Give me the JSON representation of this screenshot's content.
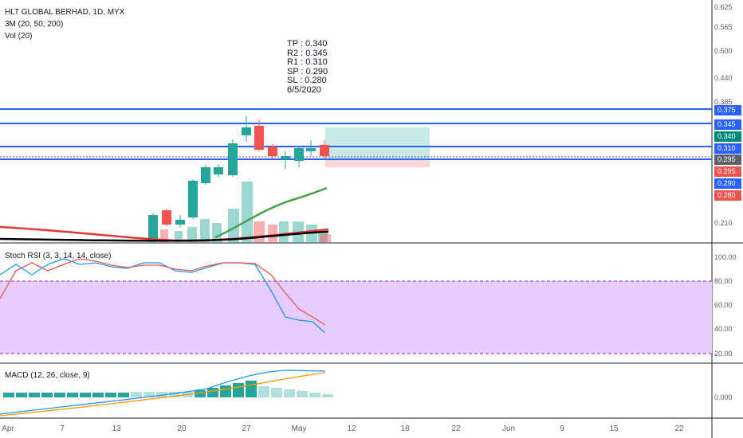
{
  "header": {
    "symbol": "HLT GLOBAL BERHAD, 1D, MYX",
    "ma_label": "3M (20, 50, 200)",
    "vol_label": "Vol (20)"
  },
  "annotation": {
    "lines": [
      "TP : 0.340",
      "R2 : 0.345",
      "R1 : 0.310",
      "SP : 0.290",
      "SL : 0.280",
      "6/5/2020"
    ]
  },
  "price_axis": {
    "ticks": [
      "0.625",
      "0.565",
      "0.500",
      "0.440",
      "0.385",
      "0.210"
    ],
    "tags": [
      {
        "text": "0.375",
        "color": "#2962ff"
      },
      {
        "text": "0.345",
        "color": "#2962ff"
      },
      {
        "text": "0.340",
        "color": "#00897b"
      },
      {
        "text": "0.310",
        "color": "#2962ff"
      },
      {
        "text": "0.295",
        "color": "#5d606b"
      },
      {
        "text": "0.295",
        "color": "#ef5350"
      },
      {
        "text": "0.290",
        "color": "#2962ff"
      },
      {
        "text": "0.280",
        "color": "#ef5350"
      }
    ]
  },
  "stoch": {
    "label": "Stoch RSI (3, 3, 14, 14, close)",
    "ticks": [
      "100.00",
      "80.00",
      "60.00",
      "40.00",
      "20.00"
    ],
    "band_color": "#e6ccff"
  },
  "macd": {
    "label": "MACD (12, 26, close, 9)",
    "tick": "0.000"
  },
  "date_axis": {
    "labels": [
      "Apr",
      "7",
      "13",
      "20",
      "27",
      "May",
      "12",
      "18",
      "22",
      "Jun",
      "9",
      "15",
      "22"
    ]
  },
  "colors": {
    "up": "#26a69a",
    "down": "#ef5350",
    "level_line": "#2962ff",
    "ma20": "#43a047",
    "ma_slow": "#000000",
    "ma_red": "#e53935"
  }
}
